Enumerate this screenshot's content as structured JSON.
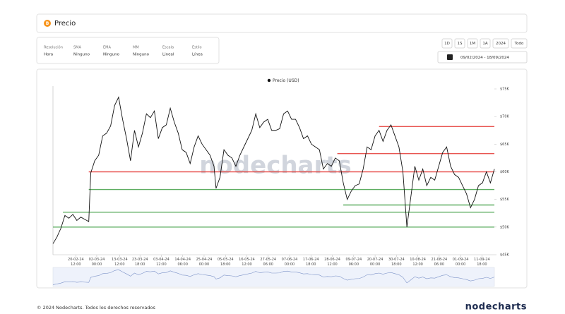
{
  "header": {
    "title": "Precio"
  },
  "settings": [
    {
      "label": "Resolución",
      "value": "Hora"
    },
    {
      "label": "SMA",
      "value": "Ninguno"
    },
    {
      "label": "EMA",
      "value": "Ninguno"
    },
    {
      "label": "MM",
      "value": "Ninguno"
    },
    {
      "label": "Escala",
      "value": "Lineal"
    },
    {
      "label": "Estilo",
      "value": "Línea"
    }
  ],
  "range_buttons": [
    "1D",
    "1S",
    "1M",
    "1A",
    "2024",
    "Todo"
  ],
  "date_range": "09/02/2024 - 18/09/2024",
  "chart_data": {
    "type": "line",
    "watermark": "nodecharts",
    "legend": "top",
    "grid": false,
    "xlim": [
      "09-02-24 00:00",
      "18-09-24 00:00"
    ],
    "xticks": [
      "20-02-24 12:00",
      "02-03-24 00:00",
      "13-03-24 12:00",
      "23-03-24 18:00",
      "03-04-24 12:00",
      "14-04-24 06:00",
      "25-04-24 00:00",
      "05-05-24 18:00",
      "16-05-24 12:00",
      "27-05-24 06:00",
      "07-06-24 00:00",
      "17-06-24 18:00",
      "28-06-24 12:00",
      "09-07-24 06:00",
      "20-07-24 00:00",
      "30-07-24 18:00",
      "10-08-24 12:00",
      "21-08-24 06:00",
      "01-09-24 00:00",
      "11-09-24 18:00"
    ],
    "ylim": [
      45000,
      75000
    ],
    "yticks": [
      {
        "value": 45000,
        "label": "$45K"
      },
      {
        "value": 50000,
        "label": "$50K"
      },
      {
        "value": 55000,
        "label": "$55K"
      },
      {
        "value": 60000,
        "label": "$60K"
      },
      {
        "value": 65000,
        "label": "$65K"
      },
      {
        "value": 70000,
        "label": "$70K"
      },
      {
        "value": 75000,
        "label": "$75K"
      }
    ],
    "x": [
      "09-02-24 00:00",
      "11-02-24 00:00",
      "13-02-24 00:00",
      "15-02-24 00:00",
      "17-02-24 00:00",
      "19-02-24 00:00",
      "21-02-24 00:00",
      "23-02-24 00:00",
      "25-02-24 00:00",
      "27-02-24 00:00",
      "28-02-24 00:00",
      "01-03-24 00:00",
      "03-03-24 00:00",
      "05-03-24 00:00",
      "07-03-24 00:00",
      "09-03-24 00:00",
      "11-03-24 00:00",
      "13-03-24 00:00",
      "15-03-24 00:00",
      "17-03-24 00:00",
      "19-03-24 00:00",
      "21-03-24 00:00",
      "23-03-24 00:00",
      "25-03-24 00:00",
      "27-03-24 00:00",
      "29-03-24 00:00",
      "31-03-24 00:00",
      "02-04-24 00:00",
      "04-04-24 00:00",
      "06-04-24 00:00",
      "08-04-24 00:00",
      "10-04-24 00:00",
      "12-04-24 00:00",
      "14-04-24 00:00",
      "16-04-24 00:00",
      "18-04-24 00:00",
      "20-04-24 00:00",
      "22-04-24 00:00",
      "24-04-24 00:00",
      "26-04-24 00:00",
      "28-04-24 00:00",
      "30-04-24 00:00",
      "01-05-24 00:00",
      "03-05-24 00:00",
      "05-05-24 00:00",
      "07-05-24 00:00",
      "09-05-24 00:00",
      "11-05-24 00:00",
      "13-05-24 00:00",
      "15-05-24 00:00",
      "17-05-24 00:00",
      "19-05-24 00:00",
      "21-05-24 00:00",
      "23-05-24 00:00",
      "25-05-24 00:00",
      "27-05-24 00:00",
      "29-05-24 00:00",
      "31-05-24 00:00",
      "02-06-24 00:00",
      "04-06-24 00:00",
      "06-06-24 00:00",
      "08-06-24 00:00",
      "10-06-24 00:00",
      "12-06-24 00:00",
      "14-06-24 00:00",
      "16-06-24 00:00",
      "18-06-24 00:00",
      "20-06-24 00:00",
      "22-06-24 00:00",
      "24-06-24 00:00",
      "26-06-24 00:00",
      "28-06-24 00:00",
      "30-06-24 00:00",
      "02-07-24 00:00",
      "04-07-24 00:00",
      "06-07-24 00:00",
      "08-07-24 00:00",
      "10-07-24 00:00",
      "12-07-24 00:00",
      "14-07-24 00:00",
      "16-07-24 00:00",
      "18-07-24 00:00",
      "20-07-24 00:00",
      "22-07-24 00:00",
      "24-07-24 00:00",
      "26-07-24 00:00",
      "28-07-24 00:00",
      "30-07-24 00:00",
      "01-08-24 00:00",
      "03-08-24 00:00",
      "05-08-24 00:00",
      "07-08-24 00:00",
      "09-08-24 00:00",
      "11-08-24 00:00",
      "13-08-24 00:00",
      "15-08-24 00:00",
      "17-08-24 00:00",
      "19-08-24 00:00",
      "21-08-24 00:00",
      "23-08-24 00:00",
      "25-08-24 00:00",
      "27-08-24 00:00",
      "29-08-24 00:00",
      "31-08-24 00:00",
      "02-09-24 00:00",
      "04-09-24 00:00",
      "06-09-24 00:00",
      "08-09-24 00:00",
      "10-09-24 00:00",
      "12-09-24 00:00",
      "14-09-24 00:00",
      "16-09-24 00:00",
      "18-09-24 00:00"
    ],
    "series": [
      {
        "name": "Precio (USD)",
        "color": "#111111",
        "values": [
          47000,
          48200,
          49800,
          52100,
          51600,
          52300,
          51200,
          51800,
          51400,
          51000,
          59800,
          62000,
          63000,
          66500,
          67000,
          68300,
          72000,
          73500,
          69500,
          66000,
          62000,
          67500,
          64500,
          67000,
          70500,
          69800,
          71000,
          66000,
          68000,
          68500,
          71500,
          69000,
          67000,
          64000,
          63500,
          61500,
          64500,
          66500,
          65000,
          64000,
          63000,
          61000,
          57000,
          59000,
          64000,
          63000,
          62500,
          61000,
          63000,
          64500,
          66000,
          67500,
          70500,
          68000,
          69000,
          69500,
          67500,
          67500,
          67800,
          70500,
          71000,
          69500,
          69500,
          68000,
          66000,
          66500,
          65000,
          64500,
          64000,
          60500,
          61500,
          61000,
          62500,
          62000,
          58000,
          55000,
          56500,
          57500,
          57800,
          60500,
          64500,
          64000,
          66500,
          67500,
          65500,
          67500,
          68500,
          66500,
          64500,
          60000,
          50000,
          55500,
          61000,
          58500,
          60500,
          57500,
          59000,
          58500,
          61000,
          63500,
          64500,
          61000,
          59500,
          59000,
          57500,
          56000,
          53500,
          55000,
          57500,
          58000,
          60000,
          58000,
          60500
        ]
      }
    ],
    "levels": [
      {
        "value": 68200,
        "start": "22-07-24 00:00",
        "color": "#e53935"
      },
      {
        "value": 63300,
        "start": "01-07-24 00:00",
        "color": "#e53935"
      },
      {
        "value": 60000,
        "start": "27-02-24 00:00",
        "color": "#e53935"
      },
      {
        "value": 56800,
        "start": "27-02-24 00:00",
        "color": "#43a047"
      },
      {
        "value": 54000,
        "start": "04-07-24 00:00",
        "color": "#43a047"
      },
      {
        "value": 52700,
        "start": "14-02-24 00:00",
        "color": "#43a047"
      },
      {
        "value": 50000,
        "start": "09-02-24 00:00",
        "color": "#43a047"
      }
    ]
  },
  "footer": {
    "copyright": "© 2024 Nodecharts. Todos los derechos reservados",
    "brand": "nodecharts"
  }
}
